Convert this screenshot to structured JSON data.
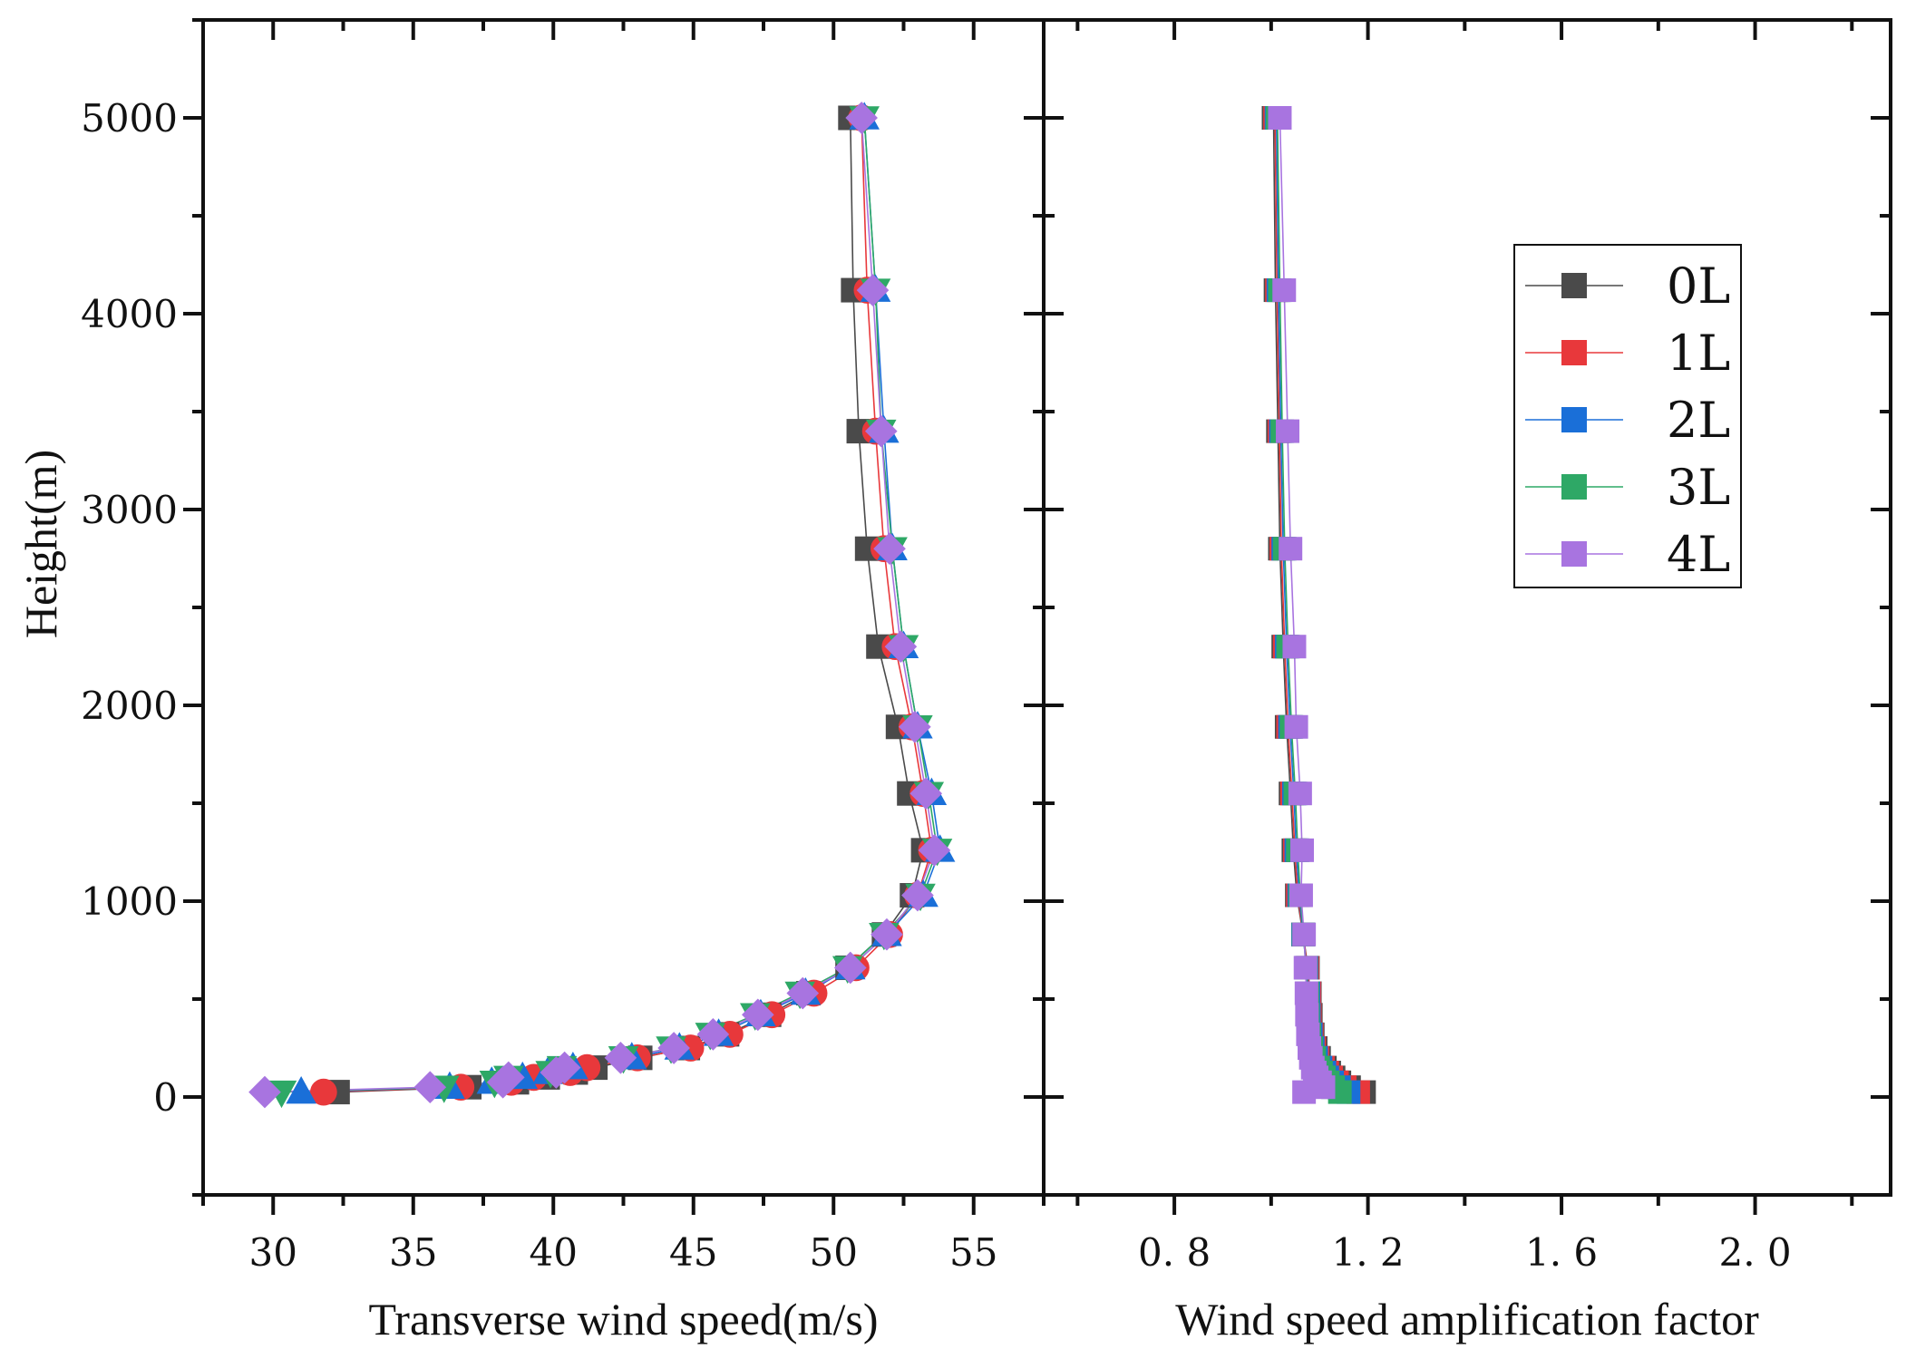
{
  "chart_data": {
    "type": "line",
    "marker_colors": {
      "0L": "#4a4a4a",
      "1L": "#e8383b",
      "2L": "#1a6fd8",
      "3L": "#2ea866",
      "4L": "#a874e0"
    },
    "legend": {
      "position": "top-right of right panel",
      "entries": [
        "0L",
        "1L",
        "2L",
        "3L",
        "4L"
      ]
    },
    "y_axis": {
      "label": "Height(m)",
      "range": [
        -500,
        5500
      ],
      "ticks": [
        0,
        1000,
        2000,
        3000,
        4000,
        5000
      ],
      "tick_labels": [
        "0",
        "1000",
        "2000",
        "3000",
        "4000",
        "5000"
      ]
    },
    "heights": [
      25,
      50,
      75,
      100,
      125,
      150,
      200,
      250,
      320,
      420,
      530,
      660,
      830,
      1030,
      1260,
      1550,
      1890,
      2300,
      2800,
      3400,
      4120,
      5000
    ],
    "panels": [
      {
        "id": "left",
        "xlabel": "Transverse wind speed(m/s)",
        "xlim": [
          27.5,
          57.5
        ],
        "xticks": [
          30,
          35,
          40,
          45,
          50,
          55
        ],
        "xtick_labels": [
          "30",
          "35",
          "40",
          "45",
          "50",
          "55"
        ],
        "series": [
          {
            "name": "0L",
            "marker": "square",
            "values": [
              32.3,
              37.0,
              38.7,
              39.8,
              40.8,
              41.5,
              43.1,
              44.8,
              46.2,
              47.7,
              49.1,
              50.5,
              51.8,
              52.8,
              53.2,
              52.7,
              52.3,
              51.6,
              51.2,
              50.9,
              50.7,
              50.6
            ]
          },
          {
            "name": "1L",
            "marker": "circle",
            "values": [
              31.8,
              36.7,
              38.5,
              39.3,
              40.6,
              41.2,
              43.0,
              44.9,
              46.3,
              47.8,
              49.3,
              50.8,
              52.0,
              53.0,
              53.5,
              53.2,
              52.8,
              52.2,
              51.8,
              51.5,
              51.2,
              51.0
            ]
          },
          {
            "name": "2L",
            "marker": "triangle",
            "values": [
              31.0,
              36.3,
              37.8,
              38.9,
              39.8,
              40.7,
              42.8,
              44.5,
              45.9,
              47.4,
              49.0,
              50.6,
              51.9,
              53.2,
              53.8,
              53.5,
              53.0,
              52.5,
              52.1,
              51.8,
              51.5,
              51.1
            ]
          },
          {
            "name": "3L",
            "marker": "triangle-down",
            "values": [
              30.3,
              36.1,
              37.9,
              38.4,
              39.9,
              40.3,
              42.5,
              44.2,
              45.6,
              47.2,
              48.8,
              50.5,
              51.8,
              53.1,
              53.7,
              53.4,
              53.0,
              52.5,
              52.1,
              51.7,
              51.5,
              51.1
            ]
          },
          {
            "name": "4L",
            "marker": "diamond",
            "values": [
              29.7,
              35.6,
              38.2,
              38.4,
              40.1,
              40.4,
              42.4,
              44.3,
              45.7,
              47.3,
              48.9,
              50.6,
              51.9,
              53.0,
              53.6,
              53.3,
              52.9,
              52.4,
              52.0,
              51.7,
              51.4,
              51.0
            ]
          }
        ]
      },
      {
        "id": "right",
        "xlabel": "Wind speed amplification factor",
        "xlim": [
          0.53,
          2.28
        ],
        "xticks": [
          0.8,
          1.2,
          1.6,
          2.0
        ],
        "xtick_labels": [
          "0.8",
          "1.2",
          "1.6",
          "2.0"
        ],
        "series": [
          {
            "name": "0L",
            "marker": "square",
            "values": [
              1.192,
              1.161,
              1.141,
              1.129,
              1.12,
              1.111,
              1.099,
              1.092,
              1.086,
              1.082,
              1.08,
              1.076,
              1.066,
              1.053,
              1.046,
              1.04,
              1.032,
              1.025,
              1.018,
              1.014,
              1.009,
              1.005
            ]
          },
          {
            "name": "1L",
            "marker": "square",
            "values": [
              1.18,
              1.152,
              1.136,
              1.124,
              1.116,
              1.107,
              1.096,
              1.089,
              1.084,
              1.08,
              1.079,
              1.075,
              1.066,
              1.055,
              1.049,
              1.043,
              1.035,
              1.028,
              1.021,
              1.017,
              1.012,
              1.008
            ]
          },
          {
            "name": "2L",
            "marker": "square",
            "values": [
              1.16,
              1.14,
              1.126,
              1.116,
              1.11,
              1.102,
              1.093,
              1.086,
              1.082,
              1.078,
              1.077,
              1.073,
              1.066,
              1.058,
              1.052,
              1.047,
              1.039,
              1.032,
              1.025,
              1.02,
              1.015,
              1.011
            ]
          },
          {
            "name": "3L",
            "marker": "square",
            "values": [
              1.142,
              1.128,
              1.117,
              1.109,
              1.103,
              1.097,
              1.089,
              1.083,
              1.079,
              1.076,
              1.075,
              1.072,
              1.067,
              1.06,
              1.055,
              1.05,
              1.042,
              1.035,
              1.028,
              1.023,
              1.018,
              1.013
            ]
          },
          {
            "name": "4L",
            "marker": "square",
            "values": [
              1.068,
              1.108,
              1.101,
              1.094,
              1.09,
              1.086,
              1.082,
              1.079,
              1.076,
              1.074,
              1.073,
              1.071,
              1.068,
              1.062,
              1.064,
              1.06,
              1.052,
              1.048,
              1.04,
              1.034,
              1.027,
              1.018
            ]
          }
        ]
      }
    ]
  }
}
